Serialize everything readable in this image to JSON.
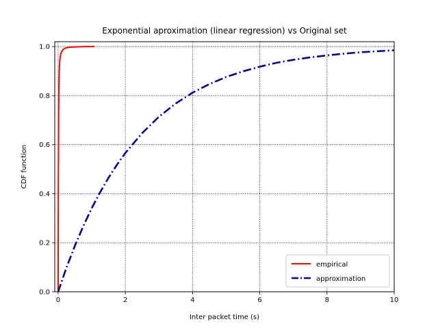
{
  "chart_data": {
    "type": "line",
    "title": "Exponential aproximation (linear regression) vs Original set",
    "xlabel": "Inter packet time (s)",
    "ylabel": "CDF function",
    "xlim": [
      -0.1,
      10
    ],
    "ylim": [
      0,
      1.02
    ],
    "xticks": [
      0,
      2,
      4,
      6,
      8,
      10
    ],
    "yticks": [
      0.0,
      0.2,
      0.4,
      0.6,
      0.8,
      1.0
    ],
    "xtick_labels": [
      "0",
      "2",
      "4",
      "6",
      "8",
      "10"
    ],
    "ytick_labels": [
      "0.0",
      "0.2",
      "0.4",
      "0.6",
      "0.8",
      "1.0"
    ],
    "grid": true,
    "legend_position": "lower-right",
    "series": [
      {
        "name": "empirical",
        "color": "#ff0000",
        "style": "solid",
        "x": [
          0.0,
          0.005,
          0.01,
          0.015,
          0.02,
          0.03,
          0.04,
          0.05,
          0.07,
          0.1,
          0.15,
          0.2,
          0.3,
          0.4,
          0.6,
          0.8,
          1.08
        ],
        "y": [
          0.0,
          0.3,
          0.55,
          0.72,
          0.82,
          0.88,
          0.92,
          0.945,
          0.965,
          0.978,
          0.988,
          0.993,
          0.997,
          0.998,
          0.999,
          1.0,
          1.0
        ]
      },
      {
        "name": "approximation",
        "color": "#00008b",
        "style": "dashdot",
        "x": [
          0.0,
          0.25,
          0.5,
          0.75,
          1.0,
          1.25,
          1.5,
          1.75,
          2.0,
          2.5,
          3.0,
          3.5,
          4.0,
          4.5,
          5.0,
          5.5,
          6.0,
          6.5,
          7.0,
          7.5,
          8.0,
          8.5,
          9.0,
          9.5,
          10.0
        ],
        "y": [
          0.0,
          0.099,
          0.188,
          0.268,
          0.341,
          0.406,
          0.465,
          0.518,
          0.566,
          0.647,
          0.714,
          0.768,
          0.812,
          0.847,
          0.876,
          0.899,
          0.918,
          0.934,
          0.946,
          0.956,
          0.964,
          0.971,
          0.977,
          0.981,
          0.985
        ]
      }
    ]
  }
}
